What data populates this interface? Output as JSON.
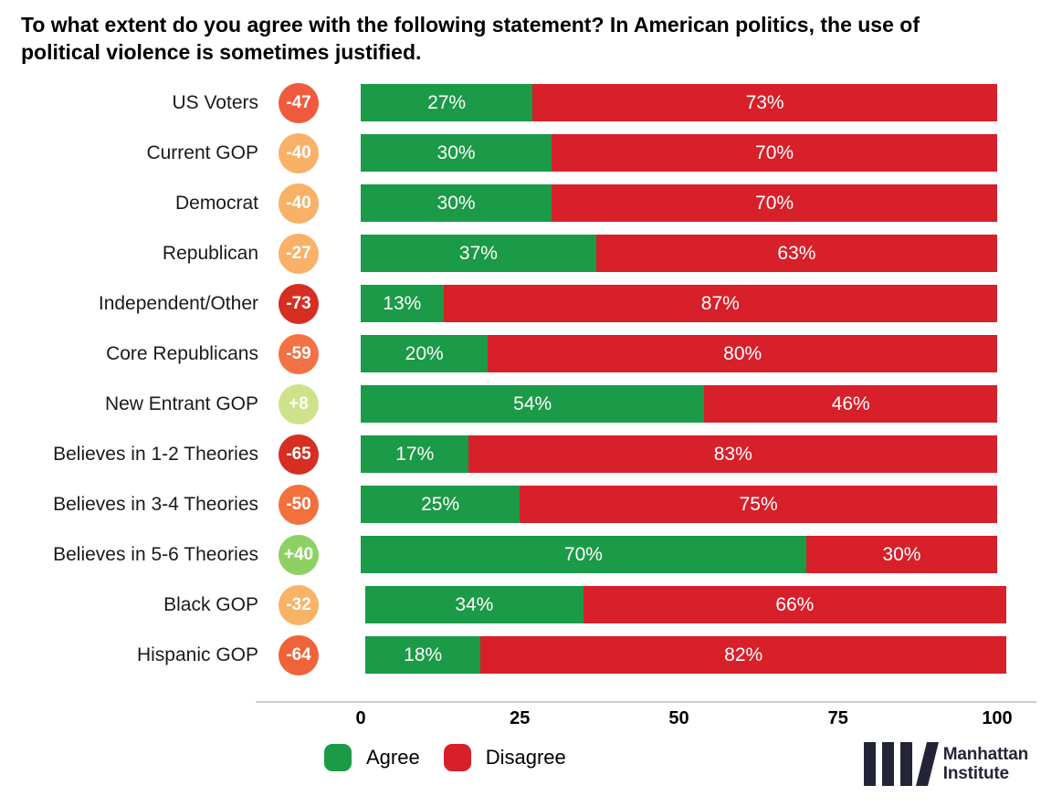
{
  "header": {
    "title_lines": [
      "To what extent do you agree with the following statement? In American politics, the use of",
      "political violence is sometimes justified."
    ]
  },
  "chart_data": {
    "type": "bar",
    "orientation": "horizontal",
    "stacked": true,
    "title": "To what extent do you agree with the following statement? In American politics, the use of political violence is sometimes justified.",
    "categories": [
      "US Voters",
      "Current GOP",
      "Democrat",
      "Republican",
      "Independent/Other",
      "Core Republicans",
      "New Entrant GOP",
      "Believes in 1-2 Theories",
      "Believes in 3-4 Theories",
      "Believes in 5-6 Theories",
      "Black GOP",
      "Hispanic GOP"
    ],
    "series": [
      {
        "name": "Agree",
        "color": "#1b9a47",
        "values": [
          27,
          30,
          30,
          37,
          13,
          20,
          54,
          17,
          25,
          70,
          34,
          18
        ]
      },
      {
        "name": "Disagree",
        "color": "#d7202a",
        "values": [
          73,
          70,
          70,
          63,
          87,
          80,
          46,
          83,
          75,
          30,
          66,
          82
        ]
      }
    ],
    "net_score_badges": [
      {
        "value": "-47",
        "color": "#f15b3d"
      },
      {
        "value": "-40",
        "color": "#f9b168"
      },
      {
        "value": "-40",
        "color": "#f9b168"
      },
      {
        "value": "-27",
        "color": "#f9b168"
      },
      {
        "value": "-73",
        "color": "#d62e22"
      },
      {
        "value": "-59",
        "color": "#f37245"
      },
      {
        "value": "+8",
        "color": "#cde28a"
      },
      {
        "value": "-65",
        "color": "#d62e22"
      },
      {
        "value": "-50",
        "color": "#f3703d"
      },
      {
        "value": "+40",
        "color": "#8ed163"
      },
      {
        "value": "-32",
        "color": "#f8b366"
      },
      {
        "value": "-64",
        "color": "#ef633b"
      }
    ],
    "x_ticks": [
      0,
      25,
      50,
      75,
      100
    ],
    "xlim": [
      0,
      100
    ],
    "grid": false,
    "legend_position": "bottom",
    "value_label_format": "percent"
  },
  "legend": {
    "agree_label": "Agree",
    "agree_color": "#1b9a47",
    "disagree_label": "Disagree",
    "disagree_color": "#d7202a"
  },
  "logo": {
    "line1": "Manhattan",
    "line2": "Institute"
  }
}
